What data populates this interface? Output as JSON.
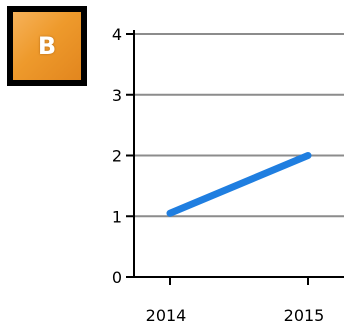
{
  "badge": {
    "letter": "B",
    "icon": "orange-badge-icon"
  },
  "chart_data": {
    "type": "line",
    "x": [
      "2014",
      "2015"
    ],
    "series": [
      {
        "values": [
          1.05,
          2.0
        ]
      }
    ],
    "title": "",
    "xlabel": "",
    "ylabel": "",
    "ylim": [
      0,
      4
    ],
    "yticks": [
      "0",
      "1",
      "2",
      "3",
      "4"
    ],
    "grid": true,
    "colors": {
      "line": "#1f7ee0",
      "grid": "#8c8c8c",
      "axis": "#000000"
    }
  }
}
